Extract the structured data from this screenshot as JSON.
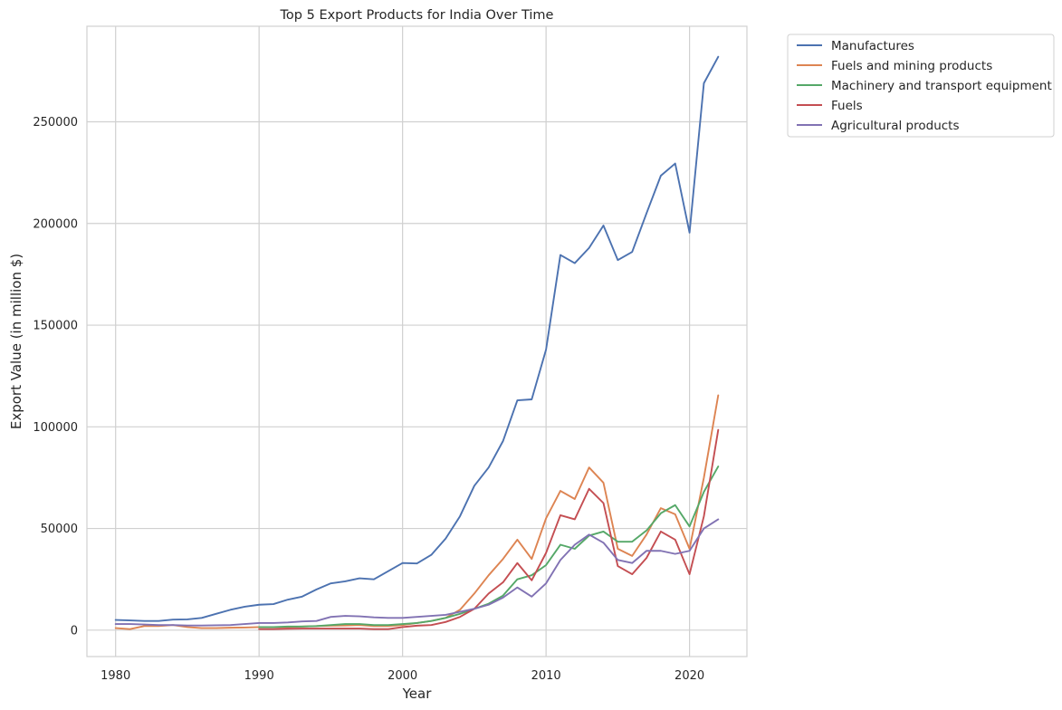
{
  "chart_data": {
    "type": "line",
    "title": "Top 5 Export Products for India Over Time",
    "xlabel": "Year",
    "ylabel": "Export Value (in million $)",
    "xlim": [
      1978,
      2024
    ],
    "ylim": [
      -13000,
      297000
    ],
    "xticks": [
      1980,
      1990,
      2000,
      2010,
      2020
    ],
    "yticks": [
      0,
      50000,
      100000,
      150000,
      200000,
      250000
    ],
    "grid": true,
    "legend_position": "outside upper right",
    "series": [
      {
        "name": "Manufactures",
        "color": "#4c72b0",
        "x": [
          1980,
          1981,
          1982,
          1983,
          1984,
          1985,
          1986,
          1987,
          1988,
          1989,
          1990,
          1991,
          1992,
          1993,
          1994,
          1995,
          1996,
          1997,
          1998,
          1999,
          2000,
          2001,
          2002,
          2003,
          2004,
          2005,
          2006,
          2007,
          2008,
          2009,
          2010,
          2011,
          2012,
          2013,
          2014,
          2015,
          2016,
          2017,
          2018,
          2019,
          2020,
          2021,
          2022
        ],
        "values": [
          5000,
          4800,
          4500,
          4500,
          5200,
          5300,
          6000,
          8000,
          10000,
          11500,
          12500,
          12800,
          15000,
          16500,
          20000,
          23000,
          24000,
          25500,
          25000,
          29000,
          33000,
          32800,
          37000,
          45000,
          56000,
          71000,
          80000,
          93000,
          113000,
          113500,
          138000,
          184500,
          180500,
          188000,
          199000,
          182000,
          186000,
          205000,
          223500,
          229500,
          195500,
          269000,
          282000
        ]
      },
      {
        "name": "Fuels and mining products",
        "color": "#dd8452",
        "x": [
          1980,
          1981,
          1982,
          1983,
          1984,
          1985,
          1986,
          1987,
          1988,
          1989,
          1990,
          1991,
          1992,
          1993,
          1994,
          1995,
          1996,
          1997,
          1998,
          1999,
          2000,
          2001,
          2002,
          2003,
          2004,
          2005,
          2006,
          2007,
          2008,
          2009,
          2010,
          2011,
          2012,
          2013,
          2014,
          2015,
          2016,
          2017,
          2018,
          2019,
          2020,
          2021,
          2022
        ],
        "values": [
          1000,
          500,
          2000,
          2000,
          2500,
          1500,
          1000,
          1000,
          1200,
          1300,
          1500,
          1500,
          1500,
          1800,
          2000,
          2200,
          2300,
          2500,
          2000,
          2000,
          2500,
          3500,
          4500,
          6000,
          10000,
          18000,
          27000,
          35000,
          44500,
          35000,
          55000,
          68500,
          64500,
          80000,
          72500,
          40000,
          36500,
          47000,
          60000,
          57000,
          40000,
          75000,
          115500
        ]
      },
      {
        "name": "Machinery and transport equipment",
        "color": "#55a868",
        "x": [
          1990,
          1991,
          1992,
          1993,
          1994,
          1995,
          1996,
          1997,
          1998,
          1999,
          2000,
          2001,
          2002,
          2003,
          2004,
          2005,
          2006,
          2007,
          2008,
          2009,
          2010,
          2011,
          2012,
          2013,
          2014,
          2015,
          2016,
          2017,
          2018,
          2019,
          2020,
          2021,
          2022
        ],
        "values": [
          1500,
          1500,
          1800,
          1800,
          2000,
          2500,
          3000,
          3000,
          2500,
          2500,
          3000,
          3500,
          4500,
          6000,
          8000,
          10500,
          13000,
          17000,
          25000,
          27000,
          32000,
          42000,
          40000,
          46500,
          48500,
          43500,
          43500,
          49000,
          57500,
          61500,
          51000,
          68000,
          80500
        ]
      },
      {
        "name": "Fuels",
        "color": "#c44e52",
        "x": [
          1990,
          1991,
          1992,
          1993,
          1994,
          1995,
          1996,
          1997,
          1998,
          1999,
          2000,
          2001,
          2002,
          2003,
          2004,
          2005,
          2006,
          2007,
          2008,
          2009,
          2010,
          2011,
          2012,
          2013,
          2014,
          2015,
          2016,
          2017,
          2018,
          2019,
          2020,
          2021,
          2022
        ],
        "values": [
          500,
          500,
          700,
          800,
          800,
          800,
          800,
          800,
          500,
          500,
          1500,
          2200,
          2500,
          4000,
          6500,
          10500,
          18000,
          23500,
          33000,
          24500,
          38000,
          56500,
          54500,
          69500,
          62500,
          31500,
          27500,
          35500,
          48500,
          44500,
          27500,
          56000,
          98500
        ]
      },
      {
        "name": "Agricultural products",
        "color": "#8172b3",
        "x": [
          1980,
          1981,
          1982,
          1983,
          1984,
          1985,
          1986,
          1987,
          1988,
          1989,
          1990,
          1991,
          1992,
          1993,
          1994,
          1995,
          1996,
          1997,
          1998,
          1999,
          2000,
          2001,
          2002,
          2003,
          2004,
          2005,
          2006,
          2007,
          2008,
          2009,
          2010,
          2011,
          2012,
          2013,
          2014,
          2015,
          2016,
          2017,
          2018,
          2019,
          2020,
          2021,
          2022
        ],
        "values": [
          3000,
          3000,
          2800,
          2500,
          2500,
          2300,
          2300,
          2400,
          2500,
          3000,
          3500,
          3500,
          3800,
          4300,
          4500,
          6500,
          7000,
          6800,
          6300,
          6000,
          6000,
          6500,
          7000,
          7500,
          9000,
          10500,
          12500,
          16000,
          21000,
          16500,
          23000,
          34500,
          42000,
          47000,
          43000,
          34500,
          33000,
          39000,
          39000,
          37500,
          39000,
          50000,
          54500
        ]
      }
    ]
  }
}
